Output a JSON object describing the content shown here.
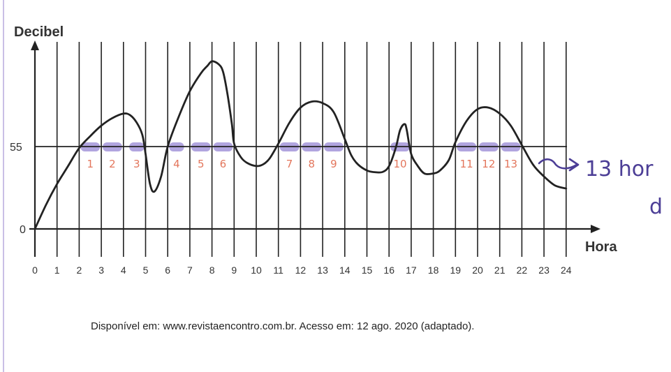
{
  "chart_data": {
    "type": "line",
    "ylabel": "Decibel",
    "xlabel": "Hora",
    "x_ticks": [
      "0",
      "1",
      "2",
      "3",
      "4",
      "5",
      "6",
      "7",
      "8",
      "9",
      "10",
      "11",
      "12",
      "13",
      "14",
      "15",
      "16",
      "17",
      "18",
      "19",
      "20",
      "21",
      "22",
      "23",
      "24"
    ],
    "y_ticks": [
      "0",
      "55"
    ],
    "xlim": [
      0,
      24
    ],
    "ylim": [
      0,
      125
    ],
    "reference_line": 55,
    "series": [
      {
        "x": [
          0,
          0.5,
          1,
          1.5,
          2,
          2.5,
          3,
          3.5,
          4,
          4.3,
          4.6,
          4.85,
          5,
          5.2,
          5.4,
          5.7,
          6,
          6.5,
          7,
          7.5,
          7.8,
          8,
          8.3,
          8.5,
          8.7,
          8.9,
          9,
          9.3,
          9.6,
          10,
          10.3,
          10.6,
          11,
          11.5,
          12,
          12.5,
          13,
          13.5,
          14,
          14.3,
          14.6,
          15,
          15.3,
          15.7,
          16,
          16.3,
          16.5,
          16.7,
          16.8,
          17,
          17.3,
          17.6,
          18,
          18.3,
          18.7,
          19,
          19.5,
          20,
          20.5,
          21,
          21.5,
          22,
          22.5,
          23,
          23.5,
          24
        ],
        "y": [
          0,
          16,
          30,
          42,
          54,
          62,
          69,
          74,
          77,
          76,
          71,
          63,
          50,
          30,
          25,
          35,
          55,
          75,
          92,
          104,
          109,
          112,
          110,
          105,
          90,
          70,
          57,
          48,
          44,
          42,
          43,
          47,
          57,
          71,
          81,
          85,
          84,
          78,
          60,
          49,
          43,
          39,
          38,
          38,
          42,
          54,
          66,
          70,
          66,
          50,
          42,
          37,
          37,
          39,
          46,
          58,
          72,
          80,
          81,
          77,
          69,
          56,
          43,
          35,
          29,
          27
        ]
      }
    ],
    "annotations": [
      "1",
      "2",
      "3",
      "4",
      "5",
      "6",
      "7",
      "8",
      "9",
      "10",
      "11",
      "12",
      "13"
    ],
    "handwritten_note_line1": "13 hor",
    "handwritten_note_line2": "d",
    "source": "Disponível em: www.revistaencontro.com.br. Acesso em: 12 ago. 2020 (adaptado).",
    "colors": {
      "ink": "#222222",
      "highlight": "#a99bdc",
      "annotation": "#e3765c",
      "handwriting": "#4c3e96"
    }
  }
}
